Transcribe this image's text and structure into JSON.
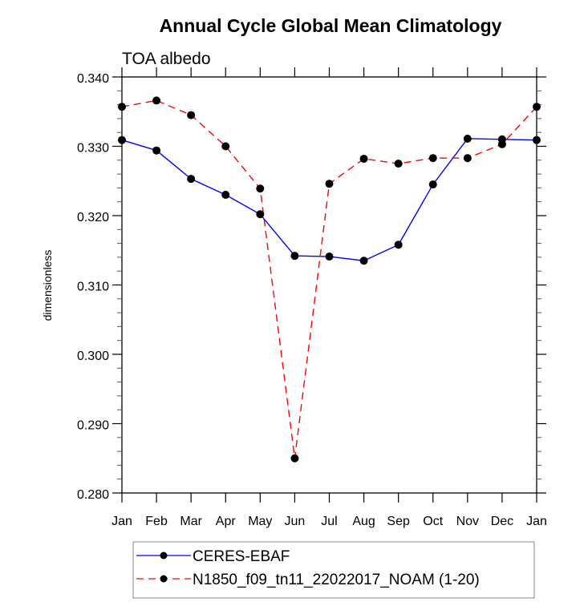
{
  "chart_data": {
    "type": "line",
    "title": "Annual Cycle Global Mean Climatology",
    "subtitle": "TOA albedo",
    "xlabel": "",
    "ylabel": "dimensionless",
    "categories": [
      "Jan",
      "Feb",
      "Mar",
      "Apr",
      "May",
      "Jun",
      "Jul",
      "Aug",
      "Sep",
      "Oct",
      "Nov",
      "Dec",
      "Jan"
    ],
    "ylim": [
      0.28,
      0.34
    ],
    "yticks": [
      0.34,
      0.33,
      0.32,
      0.31,
      0.3,
      0.29,
      0.28
    ],
    "ytick_labels": [
      "0.340",
      "0.330",
      "0.320",
      "0.310",
      "0.300",
      "0.290",
      "0.280"
    ],
    "y_minor_step": 0.002,
    "grid": false,
    "legend_position": "bottom-center",
    "series": [
      {
        "name": "CERES-EBAF",
        "color": "#0000ff",
        "line_style": "solid",
        "marker": "filled-circle",
        "values": [
          0.3309,
          0.3294,
          0.3253,
          0.323,
          0.3202,
          0.3142,
          0.3141,
          0.3135,
          0.3158,
          0.3245,
          0.3311,
          0.331,
          0.3309
        ]
      },
      {
        "name": "N1850_f09_tn11_22022017_NOAM (1-20)",
        "color": "#ff0000",
        "line_style": "dashed",
        "marker": "filled-circle",
        "values": [
          0.3357,
          0.3366,
          0.3345,
          0.33,
          0.3239,
          0.285,
          0.3246,
          0.3282,
          0.3275,
          0.3283,
          0.3283,
          0.3303,
          0.3357
        ]
      }
    ]
  }
}
